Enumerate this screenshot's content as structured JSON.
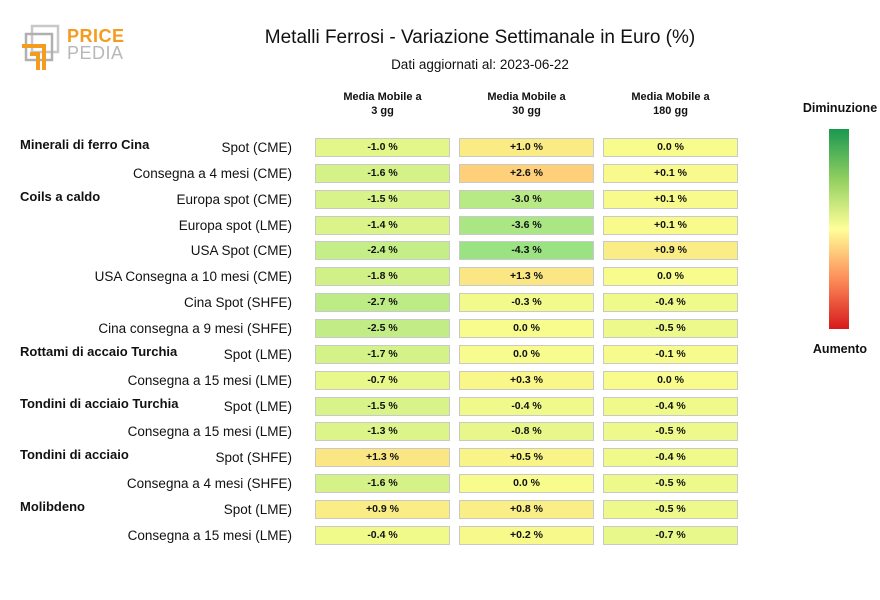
{
  "logo": {
    "line1": "PRICE",
    "line2": "PEDIA"
  },
  "colors": {
    "accent": "#f39c1f",
    "logo_gray": "#b8b8b8"
  },
  "chart_data": {
    "type": "table",
    "title": "Metalli Ferrosi - Variazione Settimanale in Euro (%)",
    "subtitle": "Dati aggiornati al: 2023-06-22",
    "columns": [
      {
        "line1": "Media Mobile a",
        "line2": "3 gg"
      },
      {
        "line1": "Media Mobile a",
        "line2": "30 gg"
      },
      {
        "line1": "Media Mobile a",
        "line2": "180 gg"
      }
    ],
    "legend": {
      "top": "Diminuzione",
      "bottom": "Aumento"
    },
    "rows": [
      {
        "group": "Minerali di ferro Cina",
        "label": "Spot (CME)",
        "values": [
          -1.0,
          1.0,
          0.0
        ],
        "text": [
          "-1.0 %",
          "+1.0 %",
          "0.0 %"
        ]
      },
      {
        "group": "",
        "label": "Consegna a 4 mesi (CME)",
        "values": [
          -1.6,
          2.6,
          0.1
        ],
        "text": [
          "-1.6 %",
          "+2.6 %",
          "+0.1 %"
        ]
      },
      {
        "group": "Coils a caldo",
        "label": "Europa spot (CME)",
        "values": [
          -1.5,
          -3.0,
          0.1
        ],
        "text": [
          "-1.5 %",
          "-3.0 %",
          "+0.1 %"
        ]
      },
      {
        "group": "",
        "label": "Europa spot (LME)",
        "values": [
          -1.4,
          -3.6,
          0.1
        ],
        "text": [
          "-1.4 %",
          "-3.6 %",
          "+0.1 %"
        ]
      },
      {
        "group": "",
        "label": "USA Spot (CME)",
        "values": [
          -2.4,
          -4.3,
          0.9
        ],
        "text": [
          "-2.4 %",
          "-4.3 %",
          "+0.9 %"
        ]
      },
      {
        "group": "",
        "label": "USA Consegna a 10 mesi (CME)",
        "values": [
          -1.8,
          1.3,
          0.0
        ],
        "text": [
          "-1.8 %",
          "+1.3 %",
          "0.0 %"
        ]
      },
      {
        "group": "",
        "label": "Cina Spot (SHFE)",
        "values": [
          -2.7,
          -0.3,
          -0.4
        ],
        "text": [
          "-2.7 %",
          "-0.3 %",
          "-0.4 %"
        ]
      },
      {
        "group": "",
        "label": "Cina consegna a 9 mesi (SHFE)",
        "values": [
          -2.5,
          0.0,
          -0.5
        ],
        "text": [
          "-2.5 %",
          "0.0 %",
          "-0.5 %"
        ]
      },
      {
        "group": "Rottami di accaio Turchia",
        "label": "Spot (LME)",
        "values": [
          -1.7,
          0.0,
          -0.1
        ],
        "text": [
          "-1.7 %",
          "0.0 %",
          "-0.1 %"
        ]
      },
      {
        "group": "",
        "label": "Consegna a 15 mesi (LME)",
        "values": [
          -0.7,
          0.3,
          0.0
        ],
        "text": [
          "-0.7 %",
          "+0.3 %",
          "0.0 %"
        ]
      },
      {
        "group": "Tondini di acciaio Turchia",
        "label": "Spot (LME)",
        "values": [
          -1.5,
          -0.4,
          -0.4
        ],
        "text": [
          "-1.5 %",
          "-0.4 %",
          "-0.4 %"
        ]
      },
      {
        "group": "",
        "label": "Consegna a 15 mesi (LME)",
        "values": [
          -1.3,
          -0.8,
          -0.5
        ],
        "text": [
          "-1.3 %",
          "-0.8 %",
          "-0.5 %"
        ]
      },
      {
        "group": "Tondini di acciaio",
        "label": "Spot (SHFE)",
        "values": [
          1.3,
          0.5,
          -0.4
        ],
        "text": [
          "+1.3 %",
          "+0.5 %",
          "-0.4 %"
        ]
      },
      {
        "group": "",
        "label": "Consegna a 4 mesi (SHFE)",
        "values": [
          -1.6,
          0.0,
          -0.5
        ],
        "text": [
          "-1.6 %",
          "0.0 %",
          "-0.5 %"
        ]
      },
      {
        "group": "Molibdeno",
        "label": "Spot (LME)",
        "values": [
          0.9,
          0.8,
          -0.5
        ],
        "text": [
          "+0.9 %",
          "+0.8 %",
          "-0.5 %"
        ]
      },
      {
        "group": "",
        "label": "Consegna a 15 mesi (LME)",
        "values": [
          -0.4,
          0.2,
          -0.7
        ],
        "text": [
          "-0.4 %",
          "+0.2 %",
          "-0.7 %"
        ]
      }
    ]
  }
}
